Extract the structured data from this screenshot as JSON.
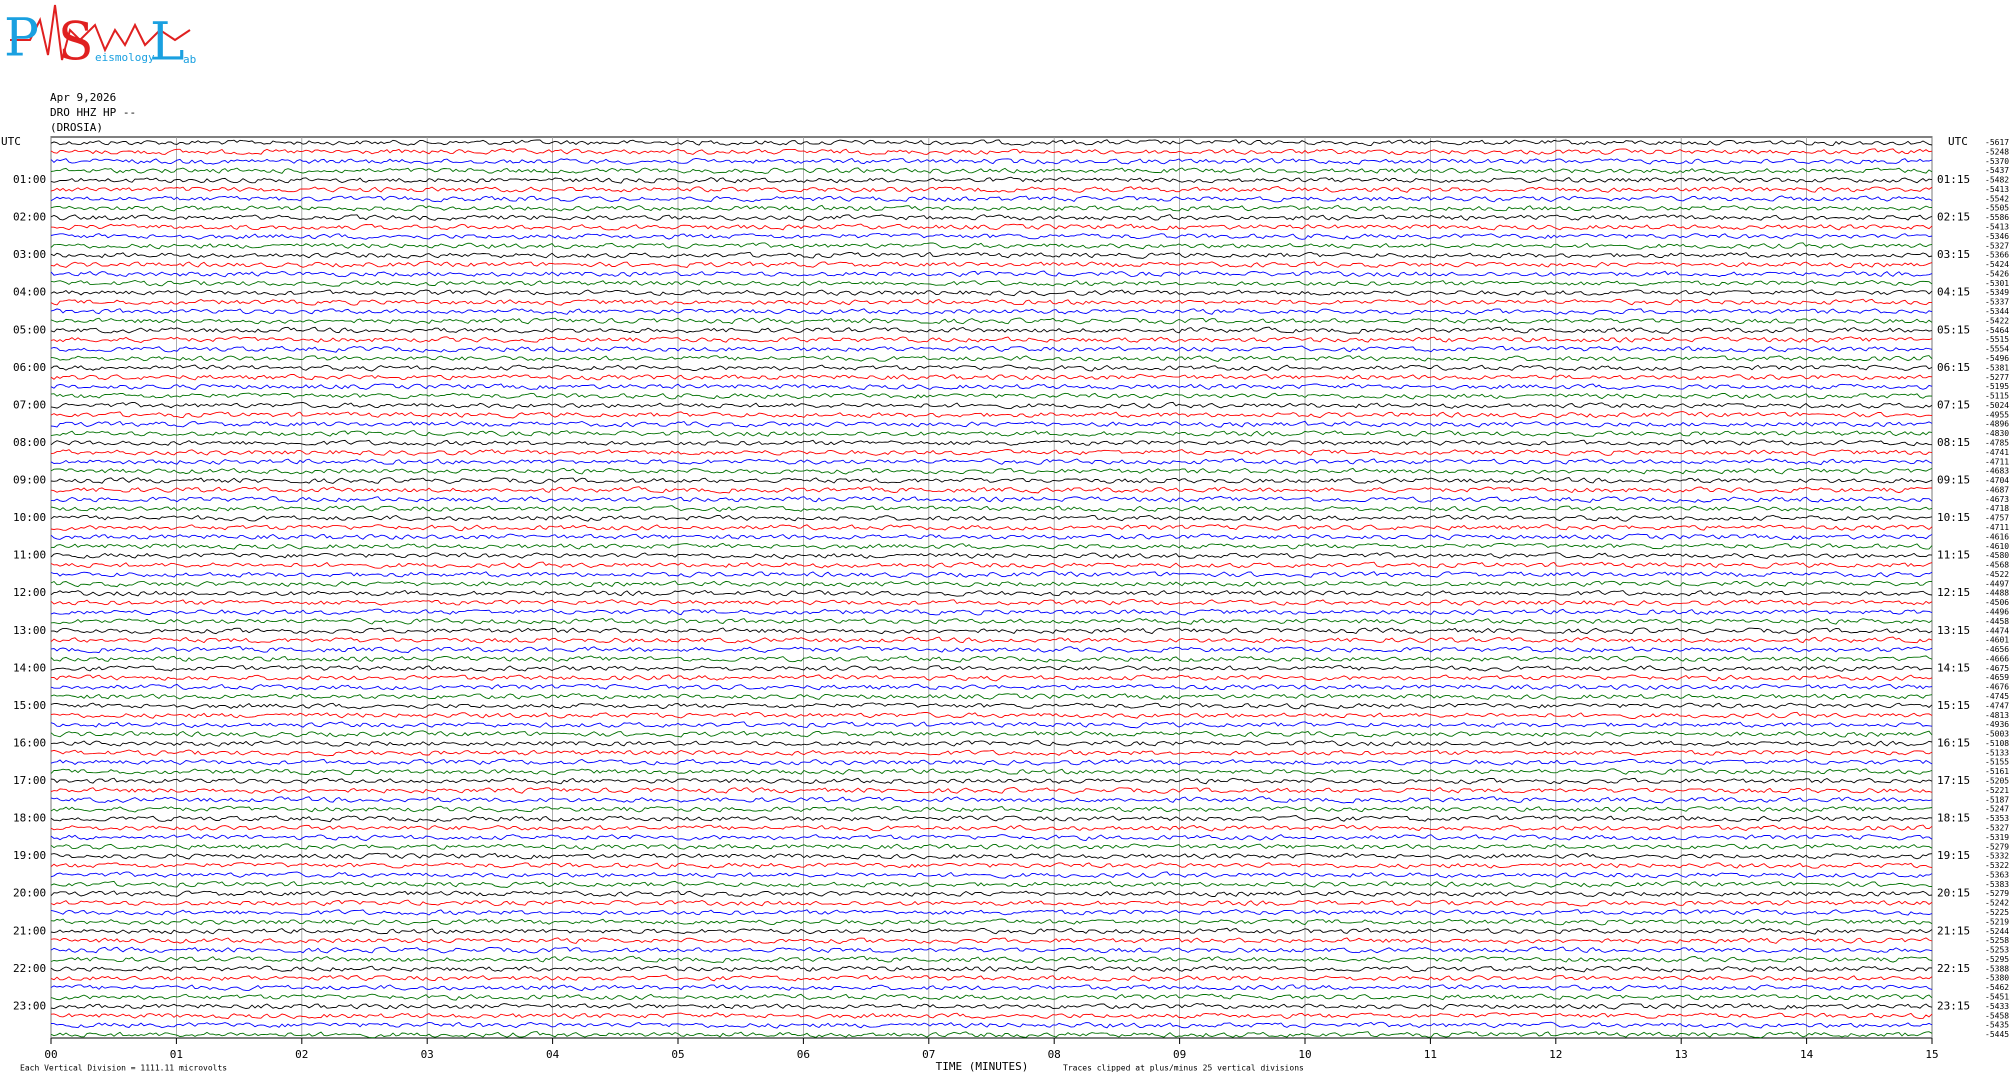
{
  "logo": {
    "letters": [
      "P",
      "S",
      "L"
    ],
    "small": [
      "eismology",
      "ab"
    ]
  },
  "chart_data": {
    "type": "helicorder",
    "header": [
      "Apr 9,2026",
      "DRO HHZ HP --",
      "(DROSIA)"
    ],
    "utc_left": "UTC",
    "utc_right": "UTC",
    "left_labels": [
      "01:00",
      "02:00",
      "03:00",
      "04:00",
      "05:00",
      "06:00",
      "07:00",
      "08:00",
      "09:00",
      "10:00",
      "11:00",
      "12:00",
      "13:00",
      "14:00",
      "15:00",
      "16:00",
      "17:00",
      "18:00",
      "19:00",
      "20:00",
      "21:00",
      "22:00",
      "23:00"
    ],
    "right_labels": [
      "01:15",
      "02:15",
      "03:15",
      "04:15",
      "05:15",
      "06:15",
      "07:15",
      "08:15",
      "09:15",
      "10:15",
      "11:15",
      "12:15",
      "13:15",
      "14:15",
      "15:15",
      "16:15",
      "17:15",
      "18:15",
      "19:15",
      "20:15",
      "21:15",
      "22:15",
      "23:15"
    ],
    "trace_colors": [
      "#000000",
      "#ff0000",
      "#0000ff",
      "#007000"
    ],
    "trace_offsets": [
      -5617,
      -5248,
      -5370,
      -5437,
      -5482,
      -5413,
      -5542,
      -5505,
      -5586,
      -5413,
      -5346,
      -5327,
      -5366,
      -5424,
      -5426,
      -5301,
      -5349,
      -5337,
      -5344,
      -5422,
      -5464,
      -5515,
      -5554,
      -5496,
      -5381,
      -5277,
      -5195,
      -5115,
      -5024,
      -4955,
      -4896,
      -4830,
      -4785,
      -4741,
      -4711,
      -4683,
      -4704,
      -4687,
      -4673,
      -4718,
      -4757,
      -4711,
      -4616,
      -4610,
      -4580,
      -4568,
      -4522,
      -4497,
      -4488,
      -4506,
      -4496,
      -4458,
      -4474,
      -4601,
      -4656,
      -4666,
      -4675,
      -4659,
      -4676,
      -4745,
      -4747,
      -4813,
      -4936,
      -5003,
      -5108,
      -5133,
      -5155,
      -5161,
      -5205,
      -5221,
      -5187,
      -5247,
      -5353,
      -5327,
      -5319,
      -5279,
      -5332,
      -5322,
      -5363,
      -5383,
      -5279,
      -5242,
      -5225,
      -5219,
      -5244,
      -5258,
      -5253,
      -5295,
      -5388,
      -5380,
      -5462,
      -5451,
      -5433,
      -5458,
      -5435,
      -5445
    ],
    "xlim": [
      0,
      15
    ],
    "xticks": [
      {
        "value": 0,
        "label": "00"
      },
      {
        "value": 1,
        "label": "01"
      },
      {
        "value": 2,
        "label": "02"
      },
      {
        "value": 3,
        "label": "03"
      },
      {
        "value": 4,
        "label": "04"
      },
      {
        "value": 5,
        "label": "05"
      },
      {
        "value": 6,
        "label": "06"
      },
      {
        "value": 7,
        "label": "07"
      },
      {
        "value": 8,
        "label": "08"
      },
      {
        "value": 9,
        "label": "09"
      },
      {
        "value": 10,
        "label": "10"
      },
      {
        "value": 11,
        "label": "11"
      },
      {
        "value": 12,
        "label": "12"
      },
      {
        "value": 13,
        "label": "13"
      },
      {
        "value": 14,
        "label": "14"
      },
      {
        "value": 15,
        "label": "15"
      }
    ],
    "xlabel": "TIME (MINUTES)",
    "clip_note": "Traces clipped at plus/minus 25 vertical divisions",
    "scale_note": "Each Vertical Division = 1111.11 microvolts",
    "grid": true
  }
}
